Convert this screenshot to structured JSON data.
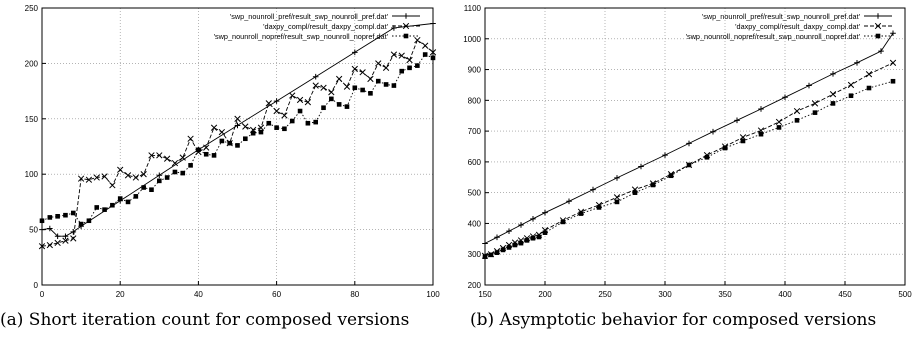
{
  "captions": {
    "a": "(a) Short iteration count for composed versions",
    "b": "(b) Asymptotic behavior for composed versions"
  },
  "chart_data": [
    {
      "type": "line",
      "title": "",
      "xlabel": "",
      "ylabel": "",
      "xlim": [
        0,
        100
      ],
      "ylim": [
        0,
        250
      ],
      "xticks": [
        0,
        20,
        40,
        60,
        80,
        100
      ],
      "yticks": [
        0,
        50,
        100,
        150,
        200,
        250
      ],
      "grid": true,
      "legend_position": "top-right",
      "series": [
        {
          "name": "'swp_nounroll_pref/result_swp_nounroll_pref.dat'",
          "marker": "plus",
          "dash": "solid",
          "x": [
            0,
            2,
            4,
            6,
            8,
            10,
            20,
            30,
            40,
            50,
            60,
            70,
            80,
            90,
            100
          ],
          "y": [
            50,
            51,
            44,
            44,
            48,
            53,
            76,
            99,
            122,
            144,
            166,
            188,
            210,
            232,
            236
          ]
        },
        {
          "name": "'daxpy_compl/result_daxpy_compl.dat'",
          "marker": "x",
          "dash": "dashed",
          "x": [
            0,
            2,
            4,
            6,
            8,
            10,
            12,
            14,
            16,
            18,
            20,
            22,
            24,
            26,
            28,
            30,
            32,
            34,
            36,
            38,
            40,
            42,
            44,
            46,
            48,
            50,
            52,
            54,
            56,
            58,
            60,
            62,
            64,
            66,
            68,
            70,
            72,
            74,
            76,
            78,
            80,
            82,
            84,
            86,
            88,
            90,
            92,
            94,
            96,
            98,
            100
          ],
          "y": [
            35,
            36,
            38,
            40,
            42,
            96,
            95,
            97,
            98,
            90,
            104,
            99,
            97,
            100,
            117,
            117,
            114,
            110,
            115,
            132,
            120,
            124,
            142,
            138,
            128,
            150,
            143,
            140,
            142,
            164,
            157,
            153,
            171,
            167,
            165,
            180,
            178,
            174,
            186,
            179,
            195,
            192,
            186,
            200,
            196,
            208,
            207,
            203,
            221,
            216,
            210
          ]
        },
        {
          "name": "'swp_nounroll_nopref/result_swp_nounroll_nopref.dat'",
          "marker": "square",
          "dash": "dotted",
          "x": [
            0,
            2,
            4,
            6,
            8,
            10,
            12,
            14,
            16,
            18,
            20,
            22,
            24,
            26,
            28,
            30,
            32,
            34,
            36,
            38,
            40,
            42,
            44,
            46,
            48,
            50,
            52,
            54,
            56,
            58,
            60,
            62,
            64,
            66,
            68,
            70,
            72,
            74,
            76,
            78,
            80,
            82,
            84,
            86,
            88,
            90,
            92,
            94,
            96,
            98,
            100
          ],
          "y": [
            58,
            61,
            62,
            63,
            65,
            55,
            58,
            70,
            68,
            72,
            78,
            75,
            80,
            88,
            86,
            94,
            97,
            102,
            101,
            108,
            122,
            118,
            117,
            130,
            128,
            126,
            132,
            137,
            138,
            146,
            142,
            141,
            148,
            157,
            146,
            147,
            160,
            168,
            163,
            161,
            178,
            176,
            173,
            184,
            181,
            180,
            193,
            196,
            198,
            208,
            205
          ]
        }
      ]
    },
    {
      "type": "line",
      "title": "",
      "xlabel": "",
      "ylabel": "",
      "xlim": [
        150,
        500
      ],
      "ylim": [
        200,
        1100
      ],
      "xticks": [
        150,
        200,
        250,
        300,
        350,
        400,
        450,
        500
      ],
      "yticks": [
        200,
        300,
        400,
        500,
        600,
        700,
        800,
        900,
        1000,
        1100
      ],
      "grid": true,
      "legend_position": "top-right",
      "series": [
        {
          "name": "'swp_nounroll_pref/result_swp_nounroll_pref.dat'",
          "marker": "plus",
          "dash": "solid",
          "x": [
            150,
            160,
            170,
            180,
            190,
            200,
            220,
            240,
            260,
            280,
            300,
            320,
            340,
            360,
            380,
            400,
            420,
            440,
            460,
            480,
            490
          ],
          "y": [
            335,
            355,
            375,
            395,
            415,
            435,
            472,
            510,
            548,
            585,
            622,
            660,
            698,
            735,
            772,
            810,
            848,
            886,
            922,
            960,
            1018
          ]
        },
        {
          "name": "'daxpy_compl/result_daxpy_compl.dat'",
          "marker": "x",
          "dash": "dashed",
          "x": [
            150,
            155,
            160,
            165,
            170,
            175,
            180,
            185,
            190,
            195,
            200,
            215,
            230,
            245,
            260,
            275,
            290,
            305,
            320,
            335,
            350,
            365,
            380,
            395,
            410,
            425,
            440,
            455,
            470,
            490
          ],
          "y": [
            295,
            300,
            310,
            320,
            330,
            338,
            345,
            352,
            358,
            363,
            378,
            410,
            438,
            460,
            485,
            510,
            530,
            560,
            590,
            622,
            650,
            680,
            702,
            730,
            765,
            790,
            820,
            850,
            885,
            922
          ]
        },
        {
          "name": "'swp_nounroll_nopref/result_swp_nounroll_nopref.dat'",
          "marker": "square",
          "dash": "dotted",
          "x": [
            150,
            155,
            160,
            165,
            170,
            175,
            180,
            185,
            190,
            195,
            200,
            215,
            230,
            245,
            260,
            275,
            290,
            305,
            320,
            335,
            350,
            365,
            380,
            395,
            410,
            425,
            440,
            455,
            470,
            490
          ],
          "y": [
            292,
            298,
            305,
            314,
            322,
            330,
            336,
            345,
            352,
            356,
            370,
            405,
            432,
            452,
            470,
            500,
            525,
            555,
            590,
            615,
            645,
            668,
            690,
            712,
            735,
            760,
            790,
            815,
            840,
            862
          ]
        }
      ]
    }
  ]
}
